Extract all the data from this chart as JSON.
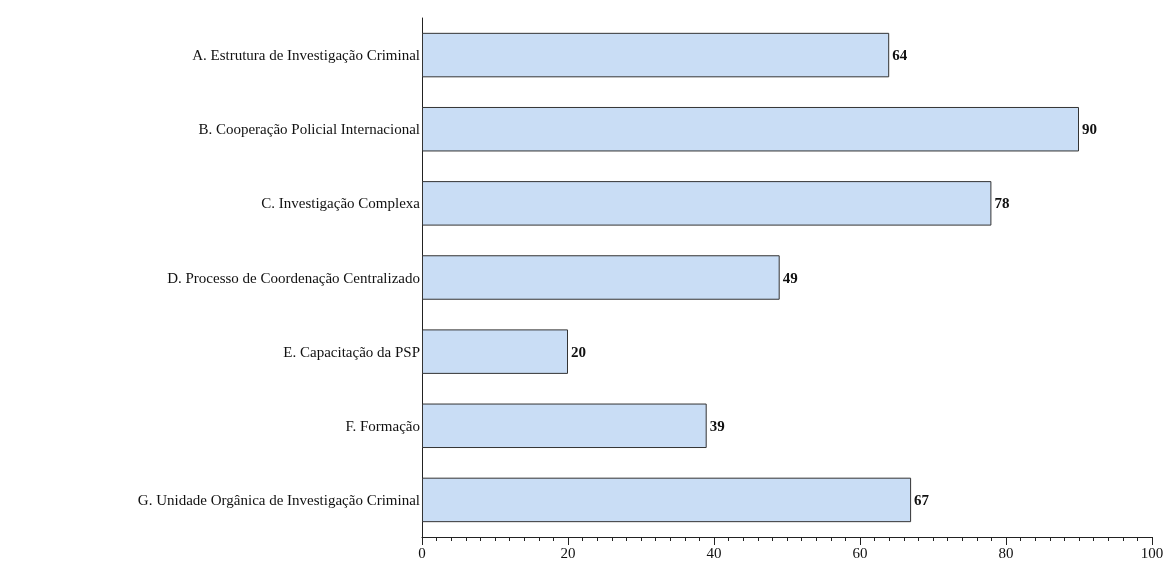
{
  "chart_data": {
    "type": "bar",
    "orientation": "horizontal",
    "categories": [
      "A. Estrutura de Investigação Criminal",
      "B. Cooperação Policial Internacional",
      "C. Investigação Complexa",
      "D. Processo de Coordenação Centralizado",
      "E. Capacitação da PSP",
      "F. Formação",
      "G. Unidade Orgânica de Investigação Criminal"
    ],
    "values": [
      64,
      90,
      78,
      49,
      20,
      39,
      67
    ],
    "color": "#c9ddf5",
    "xlim": [
      0,
      100
    ],
    "xticks": [
      0,
      20,
      40,
      60,
      80,
      100
    ],
    "data_labels": true,
    "grid": false
  }
}
